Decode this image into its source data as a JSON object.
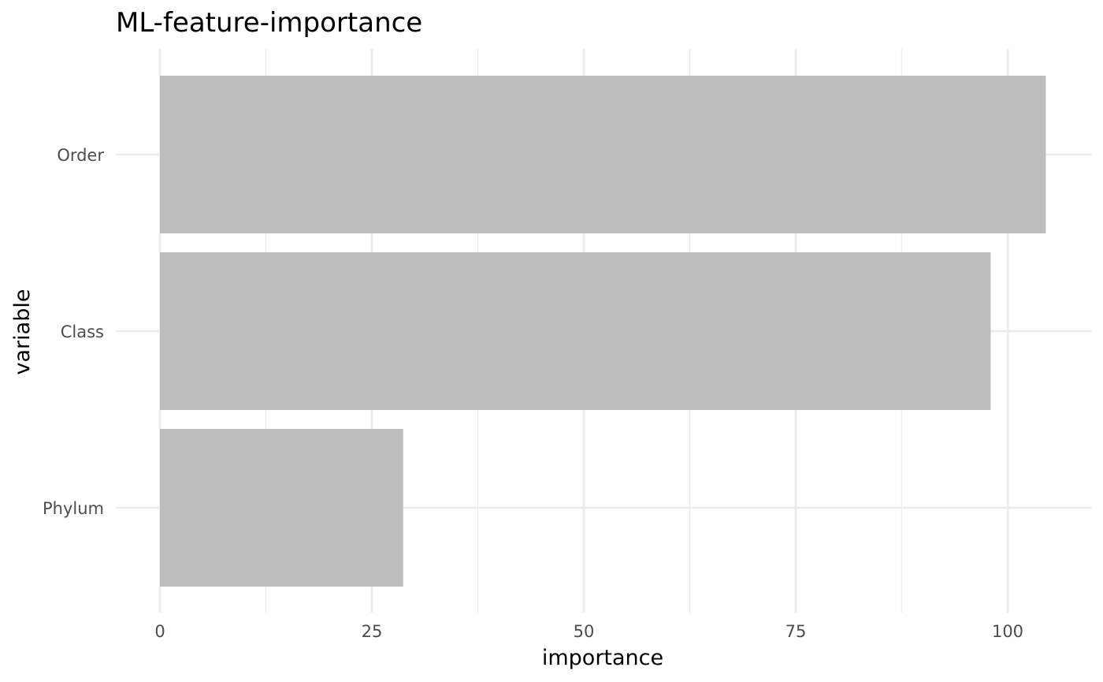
{
  "chart_data": {
    "type": "bar",
    "orientation": "horizontal",
    "title": "ML-feature-importance",
    "xlabel": "importance",
    "ylabel": "variable",
    "categories": [
      "Order",
      "Class",
      "Phylum"
    ],
    "values": [
      104.5,
      98,
      28.7
    ],
    "xlim": [
      0,
      110
    ],
    "xticks": [
      0,
      25,
      50,
      75,
      100
    ],
    "grid": true,
    "bar_color": "#bebebe",
    "grid_color": "#ebebeb",
    "legend": "none"
  }
}
